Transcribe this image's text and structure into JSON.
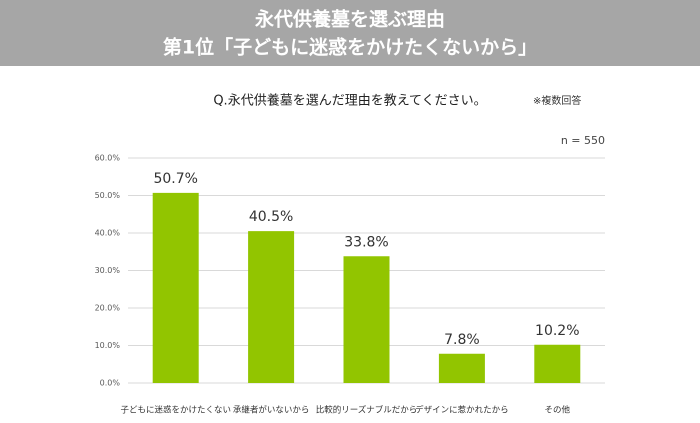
{
  "chart_data": {
    "type": "bar",
    "title": [
      "永代供養墓を選ぶ理由",
      "第1位「子どもに迷惑をかけたくないから」"
    ],
    "subtitle": "Q.永代供養墓を選んだ理由を教えてください。",
    "note": "※複数回答",
    "sample_size": "n = 550",
    "categories": [
      "子どもに迷惑をかけたくない",
      "承継者がいないから",
      "比較的リーズナブルだから",
      "デザインに惹かれたから",
      "その他"
    ],
    "values": [
      50.7,
      40.5,
      33.8,
      7.8,
      10.2
    ],
    "value_labels": [
      "50.7%",
      "40.5%",
      "33.8%",
      "7.8%",
      "10.2%"
    ],
    "color": "#92c500",
    "ylim": [
      0,
      60
    ],
    "yticks": [
      {
        "value": 0,
        "label": "0.0%"
      },
      {
        "value": 10,
        "label": "10.0%"
      },
      {
        "value": 20,
        "label": "20.0%"
      },
      {
        "value": 30,
        "label": "30.0%"
      },
      {
        "value": 40,
        "label": "40.0%"
      },
      {
        "value": 50,
        "label": "50.0%"
      },
      {
        "value": 60,
        "label": "60.0%"
      }
    ],
    "grid": true
  }
}
